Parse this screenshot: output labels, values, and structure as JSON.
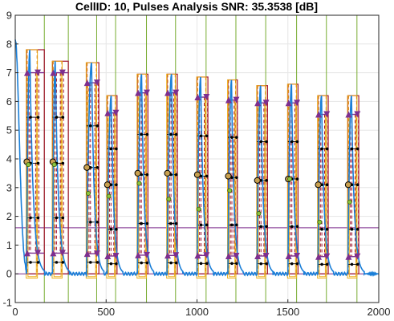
{
  "chart_data": {
    "type": "line",
    "title": "CellID: 10, Pulses Analysis  SNR: 35.3538 [dB]",
    "xlabel": "",
    "ylabel": "",
    "xlim": [
      0,
      2000
    ],
    "ylim": [
      -1,
      9
    ],
    "xticks": [
      0,
      500,
      1000,
      1500,
      2000
    ],
    "yticks": [
      -1,
      0,
      1,
      2,
      3,
      4,
      5,
      6,
      7,
      8,
      9
    ],
    "grid": true,
    "colors": {
      "signal": "#1a7fd8",
      "pulse_box": "#a2142f",
      "window": "#edb120",
      "marker_line": "#77ac30",
      "level": "#7e2f8e",
      "baseline": "#7e2f8e",
      "guides": "#000000",
      "half": "#e08a10"
    },
    "baseline_levels": [
      0,
      1.6
    ],
    "pulses": [
      {
        "start": 62,
        "peak_x": 80,
        "end": 122,
        "box_end": 160,
        "amp": 7.8,
        "peak_level": 7.0,
        "low_level": 0.72,
        "guide_y": [
          0.4,
          1.95,
          3.85,
          5.45
        ],
        "gray_y": 3.9,
        "green_y": 3.8
      },
      {
        "start": 205,
        "peak_x": 220,
        "end": 258,
        "box_end": 292,
        "amp": 7.4,
        "peak_level": 7.0,
        "low_level": 0.72,
        "guide_y": [
          0.4,
          1.95,
          3.85,
          5.45
        ],
        "gray_y": 3.9,
        "green_y": 3.8
      },
      {
        "start": 392,
        "peak_x": 420,
        "end": 448,
        "box_end": 460,
        "amp": 7.35,
        "peak_level": 6.65,
        "low_level": 0.7,
        "guide_y": [
          0.4,
          1.8,
          3.7,
          5.15
        ],
        "gray_y": 3.7,
        "green_y": 2.8
      },
      {
        "start": 505,
        "peak_x": 528,
        "end": 552,
        "box_end": 560,
        "amp": 6.2,
        "peak_level": 5.6,
        "low_level": 0.62,
        "guide_y": [
          0.35,
          1.55,
          3.1,
          4.35
        ],
        "gray_y": 3.1,
        "green_y": 2.7
      },
      {
        "start": 672,
        "peak_x": 695,
        "end": 722,
        "box_end": 730,
        "amp": 6.95,
        "peak_level": 6.3,
        "low_level": 0.65,
        "guide_y": [
          0.38,
          1.75,
          3.45,
          4.85
        ],
        "gray_y": 3.5,
        "green_y": 3.15
      },
      {
        "start": 835,
        "peak_x": 860,
        "end": 882,
        "box_end": 892,
        "amp": 6.95,
        "peak_level": 6.3,
        "low_level": 0.64,
        "guide_y": [
          0.38,
          1.75,
          3.45,
          4.85
        ],
        "gray_y": 3.5,
        "green_y": 2.6
      },
      {
        "start": 1000,
        "peak_x": 1020,
        "end": 1050,
        "box_end": 1060,
        "amp": 6.85,
        "peak_level": 6.15,
        "low_level": 0.64,
        "guide_y": [
          0.36,
          1.7,
          3.4,
          4.8
        ],
        "gray_y": 3.45,
        "green_y": 2.25
      },
      {
        "start": 1170,
        "peak_x": 1190,
        "end": 1214,
        "box_end": 1222,
        "amp": 6.75,
        "peak_level": 6.05,
        "low_level": 0.62,
        "guide_y": [
          0.36,
          1.7,
          3.35,
          4.75
        ],
        "gray_y": 3.4,
        "green_y": 2.9
      },
      {
        "start": 1330,
        "peak_x": 1350,
        "end": 1378,
        "box_end": 1388,
        "amp": 6.55,
        "peak_level": 5.95,
        "low_level": 0.62,
        "guide_y": [
          0.35,
          1.65,
          3.25,
          4.6
        ],
        "gray_y": 3.25,
        "green_y": 2.1
      },
      {
        "start": 1500,
        "peak_x": 1520,
        "end": 1548,
        "box_end": 1556,
        "amp": 6.6,
        "peak_level": 5.95,
        "low_level": 0.62,
        "guide_y": [
          0.35,
          1.65,
          3.3,
          4.6
        ],
        "gray_y": 3.3,
        "green_y": 3.3
      },
      {
        "start": 1665,
        "peak_x": 1685,
        "end": 1712,
        "box_end": 1722,
        "amp": 6.2,
        "peak_level": 5.55,
        "low_level": 0.6,
        "guide_y": [
          0.33,
          1.55,
          3.1,
          4.35
        ],
        "gray_y": 3.1,
        "green_y": 1.8
      },
      {
        "start": 1830,
        "peak_x": 1850,
        "end": 1880,
        "box_end": 1890,
        "amp": 6.2,
        "peak_level": 5.55,
        "low_level": 0.6,
        "guide_y": [
          0.33,
          1.55,
          3.1,
          4.35
        ],
        "gray_y": 3.1,
        "green_y": 2.5
      }
    ],
    "green_verticals": [
      160,
      292,
      448,
      552,
      722,
      882,
      1050,
      1214,
      1378,
      1548,
      1712,
      1880
    ]
  }
}
